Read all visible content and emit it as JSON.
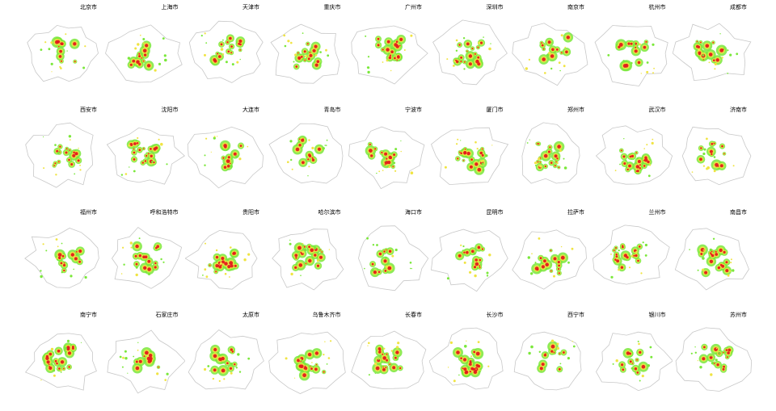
{
  "cities": [
    {
      "name": "北京市"
    },
    {
      "name": "上海市"
    },
    {
      "name": "天津市"
    },
    {
      "name": "重庆市"
    },
    {
      "name": "广州市"
    },
    {
      "name": "深圳市"
    },
    {
      "name": "南京市"
    },
    {
      "name": "杭州市"
    },
    {
      "name": "成都市"
    },
    {
      "name": "西安市"
    },
    {
      "name": "沈阳市"
    },
    {
      "name": "大连市"
    },
    {
      "name": "青岛市"
    },
    {
      "name": "宁波市"
    },
    {
      "name": "厦门市"
    },
    {
      "name": "郑州市"
    },
    {
      "name": "武汉市"
    },
    {
      "name": "济南市"
    },
    {
      "name": "福州市"
    },
    {
      "name": "呼和浩特市"
    },
    {
      "name": "贵阳市"
    },
    {
      "name": "哈尔滨市"
    },
    {
      "name": "海口市"
    },
    {
      "name": "昆明市"
    },
    {
      "name": "拉萨市"
    },
    {
      "name": "兰州市"
    },
    {
      "name": "南昌市"
    },
    {
      "name": "南宁市"
    },
    {
      "name": "石家庄市"
    },
    {
      "name": "太原市"
    },
    {
      "name": "乌鲁木齐市"
    },
    {
      "name": "长春市"
    },
    {
      "name": "长沙市"
    },
    {
      "name": "西宁市"
    },
    {
      "name": "银川市"
    },
    {
      "name": "苏州市"
    }
  ],
  "colors": {
    "high": "#e31a1c",
    "medium": "#f0e442",
    "low": "#7ae83a",
    "boundary": "#c8c8c8"
  }
}
